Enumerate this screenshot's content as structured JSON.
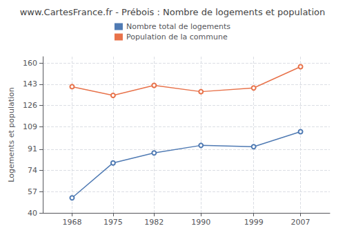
{
  "chart_data": {
    "type": "line",
    "title": "www.CartesFrance.fr - Prébois : Nombre de logements et population",
    "ylabel": "Logements et population",
    "x": [
      1968,
      1975,
      1982,
      1990,
      1999,
      2007
    ],
    "series": [
      {
        "name": "Nombre total de logements",
        "color": "#4f7ab3",
        "values": [
          52,
          80,
          88,
          94,
          93,
          105
        ]
      },
      {
        "name": "Population de la commune",
        "color": "#e8724a",
        "values": [
          141,
          134,
          142,
          137,
          140,
          157
        ]
      }
    ],
    "xlim": [
      1963,
      2012
    ],
    "xticks": [
      1968,
      1975,
      1982,
      1990,
      1999,
      2007
    ],
    "ylim": [
      40,
      165
    ],
    "yticks": [
      40,
      57,
      74,
      91,
      109,
      126,
      143,
      160
    ],
    "grid": true,
    "legend": "top",
    "marker": "circle"
  }
}
